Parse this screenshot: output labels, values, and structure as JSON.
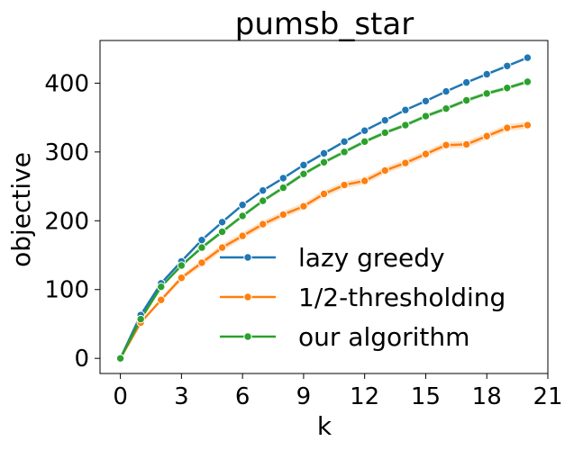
{
  "chart_data": {
    "type": "line",
    "title": "pumsb_star",
    "xlabel": "k",
    "ylabel": "objective",
    "xlim": [
      -1,
      21
    ],
    "ylim": [
      -22,
      462
    ],
    "xticks": [
      0,
      3,
      6,
      9,
      12,
      15,
      18,
      21
    ],
    "yticks": [
      0,
      100,
      200,
      300,
      400
    ],
    "grid": false,
    "legend": "lower-right",
    "x": [
      0,
      1,
      2,
      3,
      4,
      5,
      6,
      7,
      8,
      9,
      10,
      11,
      12,
      13,
      14,
      15,
      16,
      17,
      18,
      19,
      20
    ],
    "series": [
      {
        "name": "lazy greedy",
        "color": "#1f77b4",
        "values": [
          0,
          63,
          109,
          141,
          172,
          198,
          223,
          244,
          262,
          281,
          298,
          315,
          331,
          346,
          361,
          374,
          388,
          401,
          413,
          425,
          437
        ],
        "band": 0
      },
      {
        "name": "1/2-thresholding",
        "color": "#ff7f0e",
        "values": [
          0,
          52,
          85,
          117,
          139,
          161,
          178,
          195,
          209,
          221,
          239,
          252,
          258,
          273,
          284,
          297,
          310,
          311,
          323,
          335,
          339
        ],
        "band": 5
      },
      {
        "name": "our algorithm",
        "color": "#2ca02c",
        "values": [
          0,
          57,
          104,
          135,
          161,
          184,
          207,
          229,
          248,
          268,
          285,
          300,
          315,
          328,
          339,
          352,
          363,
          375,
          385,
          393,
          402
        ],
        "band": 3
      }
    ]
  }
}
